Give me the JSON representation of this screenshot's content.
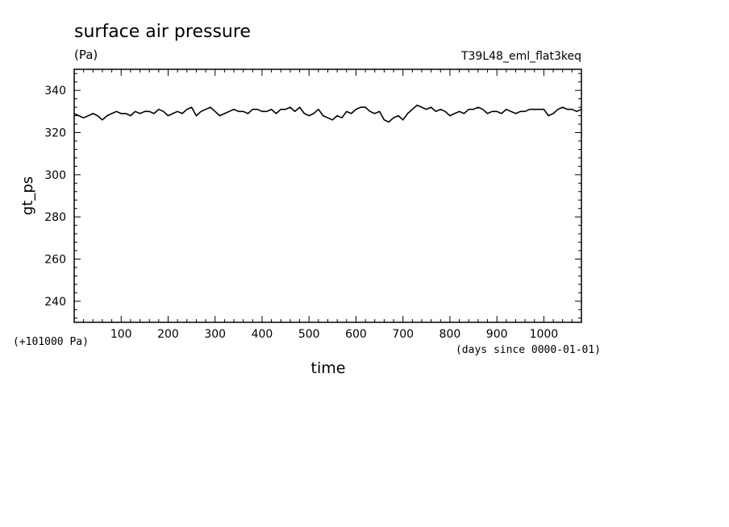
{
  "chart_data": {
    "type": "line",
    "title": "surface air pressure",
    "units": "(Pa)",
    "run_label": "T39L48_eml_flat3keq",
    "ylabel": "gt_ps",
    "xlabel": "time",
    "y_offset_label": "(+101000 Pa)",
    "x_unit_label": "(days since 0000-01-01)",
    "xlim": [
      0,
      1080
    ],
    "ylim": [
      230,
      350
    ],
    "x_ticks": [
      100,
      200,
      300,
      400,
      500,
      600,
      700,
      800,
      900,
      1000
    ],
    "x_tick_labels": [
      "100",
      "200",
      "300",
      "400",
      "500",
      "600",
      "700",
      "800",
      "900",
      "1000"
    ],
    "y_ticks": [
      240,
      260,
      280,
      300,
      320,
      340
    ],
    "y_tick_labels": [
      "240",
      "260",
      "280",
      "300",
      "320",
      "340"
    ],
    "grid": false,
    "series": [
      {
        "x": [
          0,
          10,
          20,
          30,
          40,
          50,
          60,
          70,
          80,
          90,
          100,
          110,
          120,
          130,
          140,
          150,
          160,
          170,
          180,
          190,
          200,
          210,
          220,
          230,
          240,
          250,
          260,
          270,
          280,
          290,
          300,
          310,
          320,
          330,
          340,
          350,
          360,
          370,
          380,
          390,
          400,
          410,
          420,
          430,
          440,
          450,
          460,
          470,
          480,
          490,
          500,
          510,
          520,
          530,
          540,
          550,
          560,
          570,
          580,
          590,
          600,
          610,
          620,
          630,
          640,
          650,
          660,
          670,
          680,
          690,
          700,
          710,
          720,
          730,
          740,
          750,
          760,
          770,
          780,
          790,
          800,
          810,
          820,
          830,
          840,
          850,
          860,
          870,
          880,
          890,
          900,
          910,
          920,
          930,
          940,
          950,
          960,
          970,
          980,
          990,
          1000,
          1010,
          1020,
          1030,
          1040,
          1050,
          1060,
          1070,
          1080
        ],
        "y": [
          329,
          328,
          327,
          328,
          329,
          328,
          326,
          328,
          329,
          330,
          329,
          329,
          328,
          330,
          329,
          330,
          330,
          329,
          331,
          330,
          328,
          329,
          330,
          329,
          331,
          332,
          328,
          330,
          331,
          332,
          330,
          328,
          329,
          330,
          331,
          330,
          330,
          329,
          331,
          331,
          330,
          330,
          331,
          329,
          331,
          331,
          332,
          330,
          332,
          329,
          328,
          329,
          331,
          328,
          327,
          326,
          328,
          327,
          330,
          329,
          331,
          332,
          332,
          330,
          329,
          330,
          326,
          325,
          327,
          328,
          326,
          329,
          331,
          333,
          332,
          331,
          332,
          330,
          331,
          330,
          328,
          329,
          330,
          329,
          331,
          331,
          332,
          331,
          329,
          330,
          330,
          329,
          331,
          330,
          329,
          330,
          330,
          331,
          331,
          331,
          331,
          328,
          329,
          331,
          332,
          331,
          331,
          330,
          331
        ]
      }
    ]
  }
}
